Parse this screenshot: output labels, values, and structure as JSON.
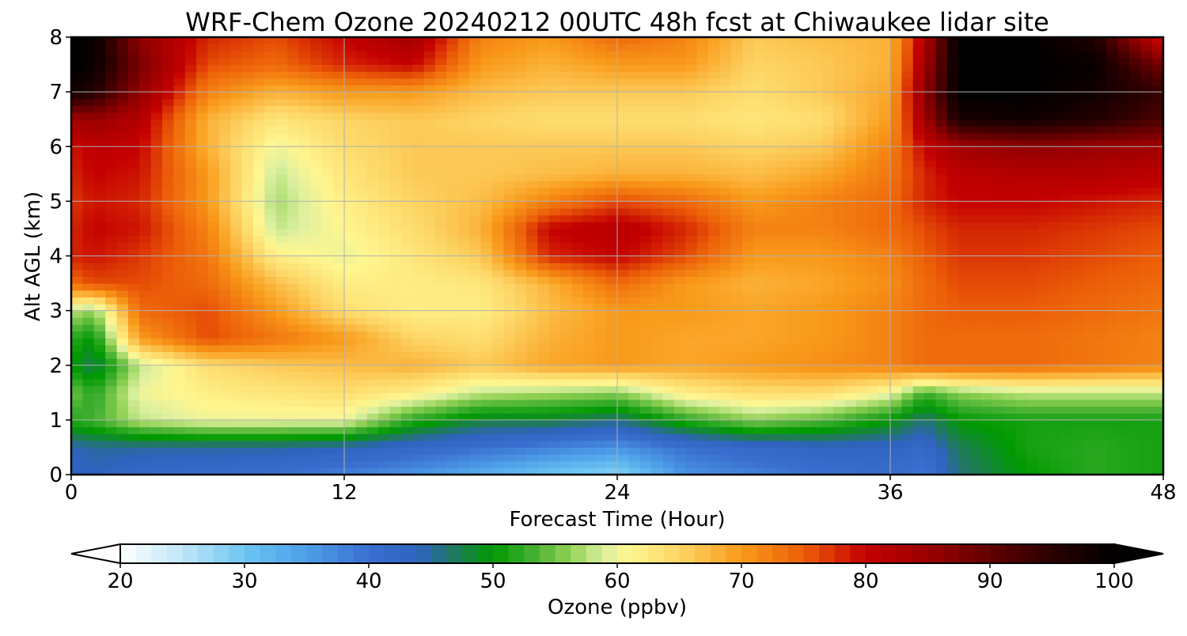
{
  "chart_data": {
    "type": "heatmap",
    "title": "WRF-Chem Ozone  20240212 00UTC 48h fcst at Chiwaukee lidar site",
    "xlabel": "Forecast Time (Hour)",
    "ylabel": "Alt AGL (km)",
    "xlim": [
      0,
      48
    ],
    "ylim": [
      0,
      8
    ],
    "x_ticks": [
      "0",
      "12",
      "24",
      "36",
      "48"
    ],
    "y_ticks": [
      "0",
      "1",
      "2",
      "3",
      "4",
      "5",
      "6",
      "7",
      "8"
    ],
    "grid": true,
    "x_hours": [
      0,
      1,
      3,
      6,
      9,
      12,
      15,
      18,
      21,
      24,
      27,
      30,
      33,
      36,
      37.5,
      39,
      42,
      45,
      48
    ],
    "z_km": [
      0,
      0.5,
      1,
      1.5,
      2,
      2.5,
      3,
      3.5,
      4,
      4.5,
      5,
      5.5,
      6,
      6.5,
      7,
      7.5,
      8
    ],
    "values_ppbv": [
      [
        43,
        44,
        42,
        41,
        40,
        38,
        36,
        33,
        30,
        28,
        36,
        38,
        40,
        41,
        39,
        46,
        50,
        52,
        51
      ],
      [
        44,
        45,
        45,
        45,
        45,
        44,
        42,
        40,
        38,
        36,
        40,
        42,
        43,
        43,
        42,
        47,
        51,
        52,
        51
      ],
      [
        52,
        53,
        58,
        60,
        60,
        60,
        52,
        48,
        48,
        46,
        52,
        56,
        54,
        50,
        46,
        50,
        51,
        51,
        51
      ],
      [
        55,
        52,
        60,
        62,
        63,
        64,
        62,
        58,
        57,
        56,
        62,
        64,
        64,
        60,
        53,
        56,
        58,
        58,
        58
      ],
      [
        50,
        47,
        58,
        64,
        66,
        67,
        68,
        66,
        69,
        70,
        69,
        70,
        71,
        72,
        74,
        74,
        74,
        73,
        72
      ],
      [
        52,
        50,
        70,
        76,
        73,
        70,
        65,
        64,
        68,
        70,
        69,
        69,
        70,
        72,
        74,
        74,
        74,
        73,
        72
      ],
      [
        58,
        56,
        74,
        76,
        70,
        64,
        62,
        62,
        67,
        70,
        70,
        69,
        70,
        72,
        74,
        75,
        75,
        74,
        73
      ],
      [
        74,
        76,
        76,
        74,
        67,
        62,
        62,
        63,
        68,
        74,
        70,
        68,
        69,
        71,
        74,
        76,
        76,
        75,
        74
      ],
      [
        78,
        79,
        77,
        73,
        62,
        60,
        63,
        66,
        78,
        80,
        76,
        70,
        70,
        72,
        75,
        77,
        77,
        76,
        75
      ],
      [
        78,
        80,
        79,
        72,
        58,
        61,
        64,
        68,
        80,
        82,
        78,
        72,
        72,
        74,
        76,
        78,
        78,
        77,
        76
      ],
      [
        77,
        79,
        78,
        70,
        57,
        62,
        65,
        67,
        72,
        76,
        74,
        70,
        72,
        74,
        78,
        80,
        80,
        79,
        78
      ],
      [
        78,
        80,
        79,
        70,
        58,
        63,
        66,
        66,
        67,
        68,
        68,
        67,
        69,
        73,
        78,
        81,
        82,
        82,
        81
      ],
      [
        79,
        81,
        80,
        68,
        60,
        64,
        66,
        66,
        66,
        66,
        66,
        65,
        66,
        72,
        80,
        84,
        86,
        85,
        84
      ],
      [
        84,
        85,
        82,
        68,
        63,
        65,
        66,
        65,
        64,
        64,
        64,
        63,
        64,
        70,
        84,
        97,
        98,
        96,
        92
      ],
      [
        98,
        96,
        86,
        72,
        68,
        70,
        70,
        67,
        66,
        66,
        66,
        64,
        66,
        69,
        86,
        100,
        100,
        98,
        94
      ],
      [
        100,
        99,
        88,
        76,
        74,
        78,
        80,
        70,
        68,
        70,
        70,
        65,
        66,
        68,
        84,
        100,
        100,
        99,
        88
      ],
      [
        100,
        99,
        86,
        78,
        76,
        80,
        84,
        72,
        70,
        74,
        72,
        66,
        67,
        68,
        82,
        100,
        100,
        96,
        78
      ]
    ],
    "colorbar": {
      "label": "Ozone  (ppbv)",
      "ticks": [
        "20",
        "30",
        "40",
        "50",
        "60",
        "70",
        "80",
        "90",
        "100"
      ],
      "range": [
        20,
        100
      ],
      "extend": "both",
      "stops": [
        {
          "v": 20,
          "c": "#ffffff"
        },
        {
          "v": 25,
          "c": "#bfe6f7"
        },
        {
          "v": 30,
          "c": "#6cc6f2"
        },
        {
          "v": 35,
          "c": "#4d9ee8"
        },
        {
          "v": 40,
          "c": "#3a6fd0"
        },
        {
          "v": 44,
          "c": "#2f63be"
        },
        {
          "v": 47,
          "c": "#1f7a5a"
        },
        {
          "v": 50,
          "c": "#009a00"
        },
        {
          "v": 53,
          "c": "#3eae30"
        },
        {
          "v": 56,
          "c": "#8ccf50"
        },
        {
          "v": 59,
          "c": "#dcf0a0"
        },
        {
          "v": 61,
          "c": "#fff690"
        },
        {
          "v": 65,
          "c": "#fdd565"
        },
        {
          "v": 70,
          "c": "#f99a1a"
        },
        {
          "v": 75,
          "c": "#ec5e08"
        },
        {
          "v": 80,
          "c": "#c40000"
        },
        {
          "v": 85,
          "c": "#9a0000"
        },
        {
          "v": 90,
          "c": "#620000"
        },
        {
          "v": 95,
          "c": "#2a0000"
        },
        {
          "v": 100,
          "c": "#000000"
        }
      ]
    }
  }
}
